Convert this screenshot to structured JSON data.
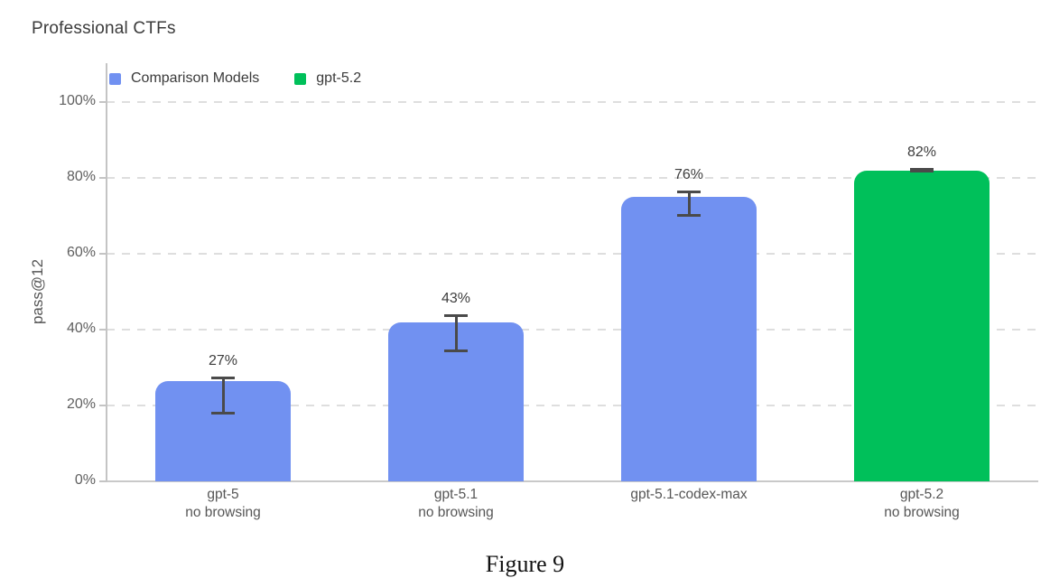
{
  "chart_data": {
    "type": "bar",
    "title": "Professional CTFs",
    "ylabel": "pass@12",
    "caption": "Figure 9",
    "grid": "dashed-horizontal",
    "legend_position": "top-left",
    "legend": [
      {
        "label": "Comparison Models",
        "color_key": "comparison"
      },
      {
        "label": "gpt-5.2",
        "color_key": "highlight"
      }
    ],
    "colors": {
      "comparison": "#7191f1",
      "highlight": "#00c05a",
      "error_bar": "#4a4a4a",
      "grid_line": "#dedede",
      "axis_line": "#c4c4c4"
    },
    "y_axis": {
      "ylim": [
        0,
        100
      ],
      "unit": "%",
      "ticks": [
        {
          "value": 0,
          "label": "0%"
        },
        {
          "value": 20,
          "label": "20%"
        },
        {
          "value": 40,
          "label": "40%"
        },
        {
          "value": 60,
          "label": "60%"
        },
        {
          "value": 80,
          "label": "80%"
        },
        {
          "value": 100,
          "label": "100%"
        }
      ]
    },
    "bars": [
      {
        "label_lines": [
          "gpt-5",
          "no browsing"
        ],
        "value_label": "27%",
        "value": 27,
        "bar_height_pct": 26.5,
        "err_low_pct": 17.9,
        "err_high_pct": 27.4,
        "color_key": "comparison"
      },
      {
        "label_lines": [
          "gpt-5.1",
          "no browsing"
        ],
        "value_label": "43%",
        "value": 43,
        "bar_height_pct": 42,
        "err_low_pct": 34.3,
        "err_high_pct": 43.8,
        "color_key": "comparison"
      },
      {
        "label_lines": [
          "gpt-5.1-codex-max"
        ],
        "value_label": "76%",
        "value": 76,
        "bar_height_pct": 75,
        "err_low_pct": 70,
        "err_high_pct": 76.4,
        "color_key": "comparison"
      },
      {
        "label_lines": [
          "gpt-5.2",
          "no browsing"
        ],
        "value_label": "82%",
        "value": 82,
        "bar_height_pct": 82,
        "err_low_pct": 81.6,
        "err_high_pct": 82.4,
        "color_key": "highlight"
      }
    ]
  }
}
